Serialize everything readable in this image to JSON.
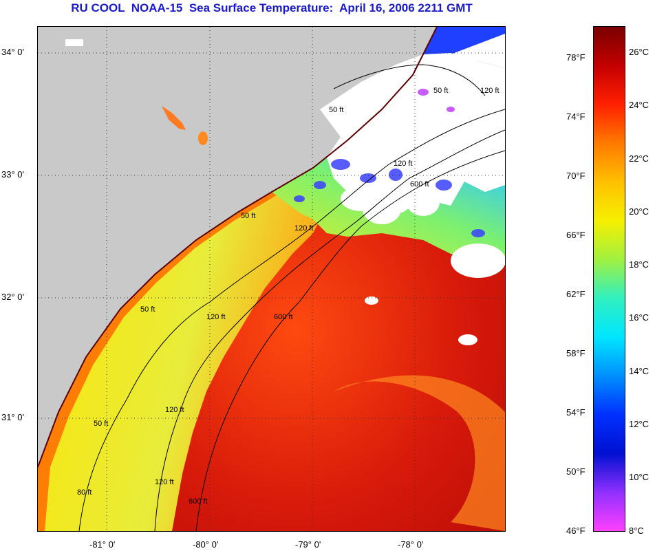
{
  "title": "RU COOL  NOAA-15  Sea Surface Temperature:  April 16, 2006 2211 GMT",
  "map": {
    "lat_labels": [
      "34° 0'",
      "33° 0'",
      "32° 0'",
      "31° 0'"
    ],
    "lon_labels": [
      "-81° 0'",
      "-80° 0'",
      "-79° 0'",
      "-78° 0'"
    ],
    "contour_labels": [
      "50 ft",
      "120 ft",
      "600 ft",
      "50 ft",
      "120 ft",
      "600 ft",
      "50 ft",
      "120 ft",
      "120 ft",
      "50 ft",
      "120 ft",
      "50 ft",
      "120 ft",
      "600 ft",
      "80 ft"
    ],
    "colors": {
      "land": "#c9c9c9",
      "cloud": "#ffffff",
      "gulf_stream": "#c81010",
      "shelf_cool": "#e6ee20",
      "coastal_warm": "#ff6a00"
    }
  },
  "colorbar": {
    "fahrenheit_labels": [
      "78°F",
      "74°F",
      "70°F",
      "66°F",
      "62°F",
      "58°F",
      "54°F",
      "50°F",
      "46°F"
    ],
    "celsius_labels": [
      "26°C",
      "24°C",
      "22°C",
      "20°C",
      "18°C",
      "16°C",
      "14°C",
      "12°C",
      "10°C",
      "8°C"
    ],
    "gradient_colors": [
      "#7a0000",
      "#c40000",
      "#ff2000",
      "#ff7a00",
      "#ffc000",
      "#f6f000",
      "#a0f040",
      "#30f0c0",
      "#00e6ff",
      "#0090ff",
      "#0030ff",
      "#0010d0",
      "#9030ff",
      "#ff40ff"
    ]
  }
}
